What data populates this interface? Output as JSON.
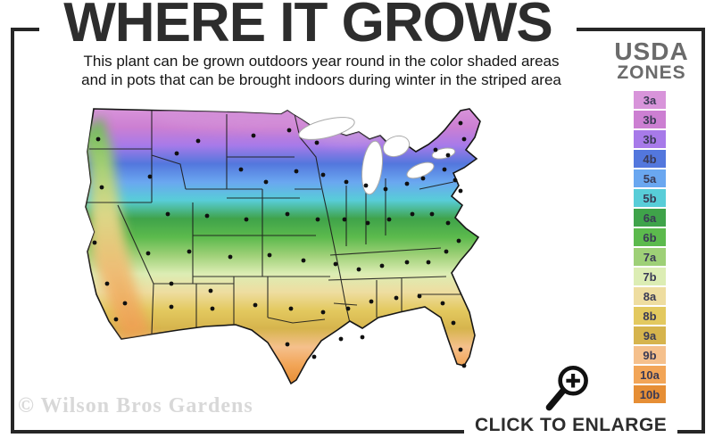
{
  "header": {
    "title": "WHERE IT GROWS",
    "subtitle_line1": "This plant can be grown outdoors year round in the color shaded areas",
    "subtitle_line2": "and in pots that can be brought indoors during winter in the striped area"
  },
  "legend": {
    "title_line1": "USDA",
    "title_line2": "ZONES",
    "zones": [
      {
        "label": "3a",
        "color": "#d894da"
      },
      {
        "label": "3b",
        "color": "#cc7fd2"
      },
      {
        "label": "3b",
        "color": "#a77ae9"
      },
      {
        "label": "4b",
        "color": "#5377dd"
      },
      {
        "label": "5a",
        "color": "#6aa7f0"
      },
      {
        "label": "5b",
        "color": "#58cdd8"
      },
      {
        "label": "6a",
        "color": "#3fa34a"
      },
      {
        "label": "6b",
        "color": "#5cba4d"
      },
      {
        "label": "7a",
        "color": "#9ed077"
      },
      {
        "label": "7b",
        "color": "#dcedb4"
      },
      {
        "label": "8a",
        "color": "#eedda0"
      },
      {
        "label": "8b",
        "color": "#e3c95f"
      },
      {
        "label": "9a",
        "color": "#d6b44d"
      },
      {
        "label": "9b",
        "color": "#f5c08c"
      },
      {
        "label": "10a",
        "color": "#f2a557"
      },
      {
        "label": "10b",
        "color": "#e68e35"
      }
    ]
  },
  "map": {
    "city_dots": [
      [
        40,
        44
      ],
      [
        44,
        98
      ],
      [
        98,
        86
      ],
      [
        128,
        60
      ],
      [
        152,
        46
      ],
      [
        214,
        40
      ],
      [
        254,
        34
      ],
      [
        285,
        48
      ],
      [
        200,
        78
      ],
      [
        228,
        92
      ],
      [
        262,
        80
      ],
      [
        292,
        84
      ],
      [
        318,
        92
      ],
      [
        340,
        96
      ],
      [
        362,
        100
      ],
      [
        386,
        94
      ],
      [
        404,
        88
      ],
      [
        418,
        56
      ],
      [
        432,
        62
      ],
      [
        446,
        26
      ],
      [
        450,
        44
      ],
      [
        428,
        78
      ],
      [
        440,
        90
      ],
      [
        446,
        102
      ],
      [
        118,
        128
      ],
      [
        162,
        130
      ],
      [
        206,
        134
      ],
      [
        252,
        128
      ],
      [
        286,
        134
      ],
      [
        316,
        134
      ],
      [
        342,
        138
      ],
      [
        366,
        134
      ],
      [
        392,
        128
      ],
      [
        414,
        128
      ],
      [
        432,
        138
      ],
      [
        96,
        172
      ],
      [
        142,
        170
      ],
      [
        188,
        176
      ],
      [
        232,
        174
      ],
      [
        270,
        180
      ],
      [
        306,
        184
      ],
      [
        332,
        190
      ],
      [
        358,
        186
      ],
      [
        386,
        182
      ],
      [
        410,
        182
      ],
      [
        430,
        170
      ],
      [
        444,
        158
      ],
      [
        70,
        228
      ],
      [
        122,
        232
      ],
      [
        168,
        234
      ],
      [
        216,
        230
      ],
      [
        256,
        234
      ],
      [
        292,
        238
      ],
      [
        320,
        234
      ],
      [
        346,
        226
      ],
      [
        374,
        222
      ],
      [
        400,
        220
      ],
      [
        426,
        228
      ],
      [
        252,
        274
      ],
      [
        282,
        288
      ],
      [
        312,
        268
      ],
      [
        336,
        266
      ],
      [
        438,
        250
      ],
      [
        446,
        280
      ],
      [
        450,
        298
      ],
      [
        36,
        160
      ],
      [
        50,
        206
      ],
      [
        60,
        246
      ],
      [
        122,
        206
      ],
      [
        166,
        214
      ]
    ]
  },
  "footer": {
    "watermark": "© Wilson Bros Gardens",
    "enlarge_label": "CLICK TO ENLARGE",
    "enlarge_icon": "magnifying-glass-plus"
  },
  "colors": {
    "frame": "#262626",
    "title_text": "#2d2d2d",
    "legend_title_text": "#6b6b6b",
    "watermark_text": "#d8d8d8",
    "map_outline": "#161616"
  }
}
